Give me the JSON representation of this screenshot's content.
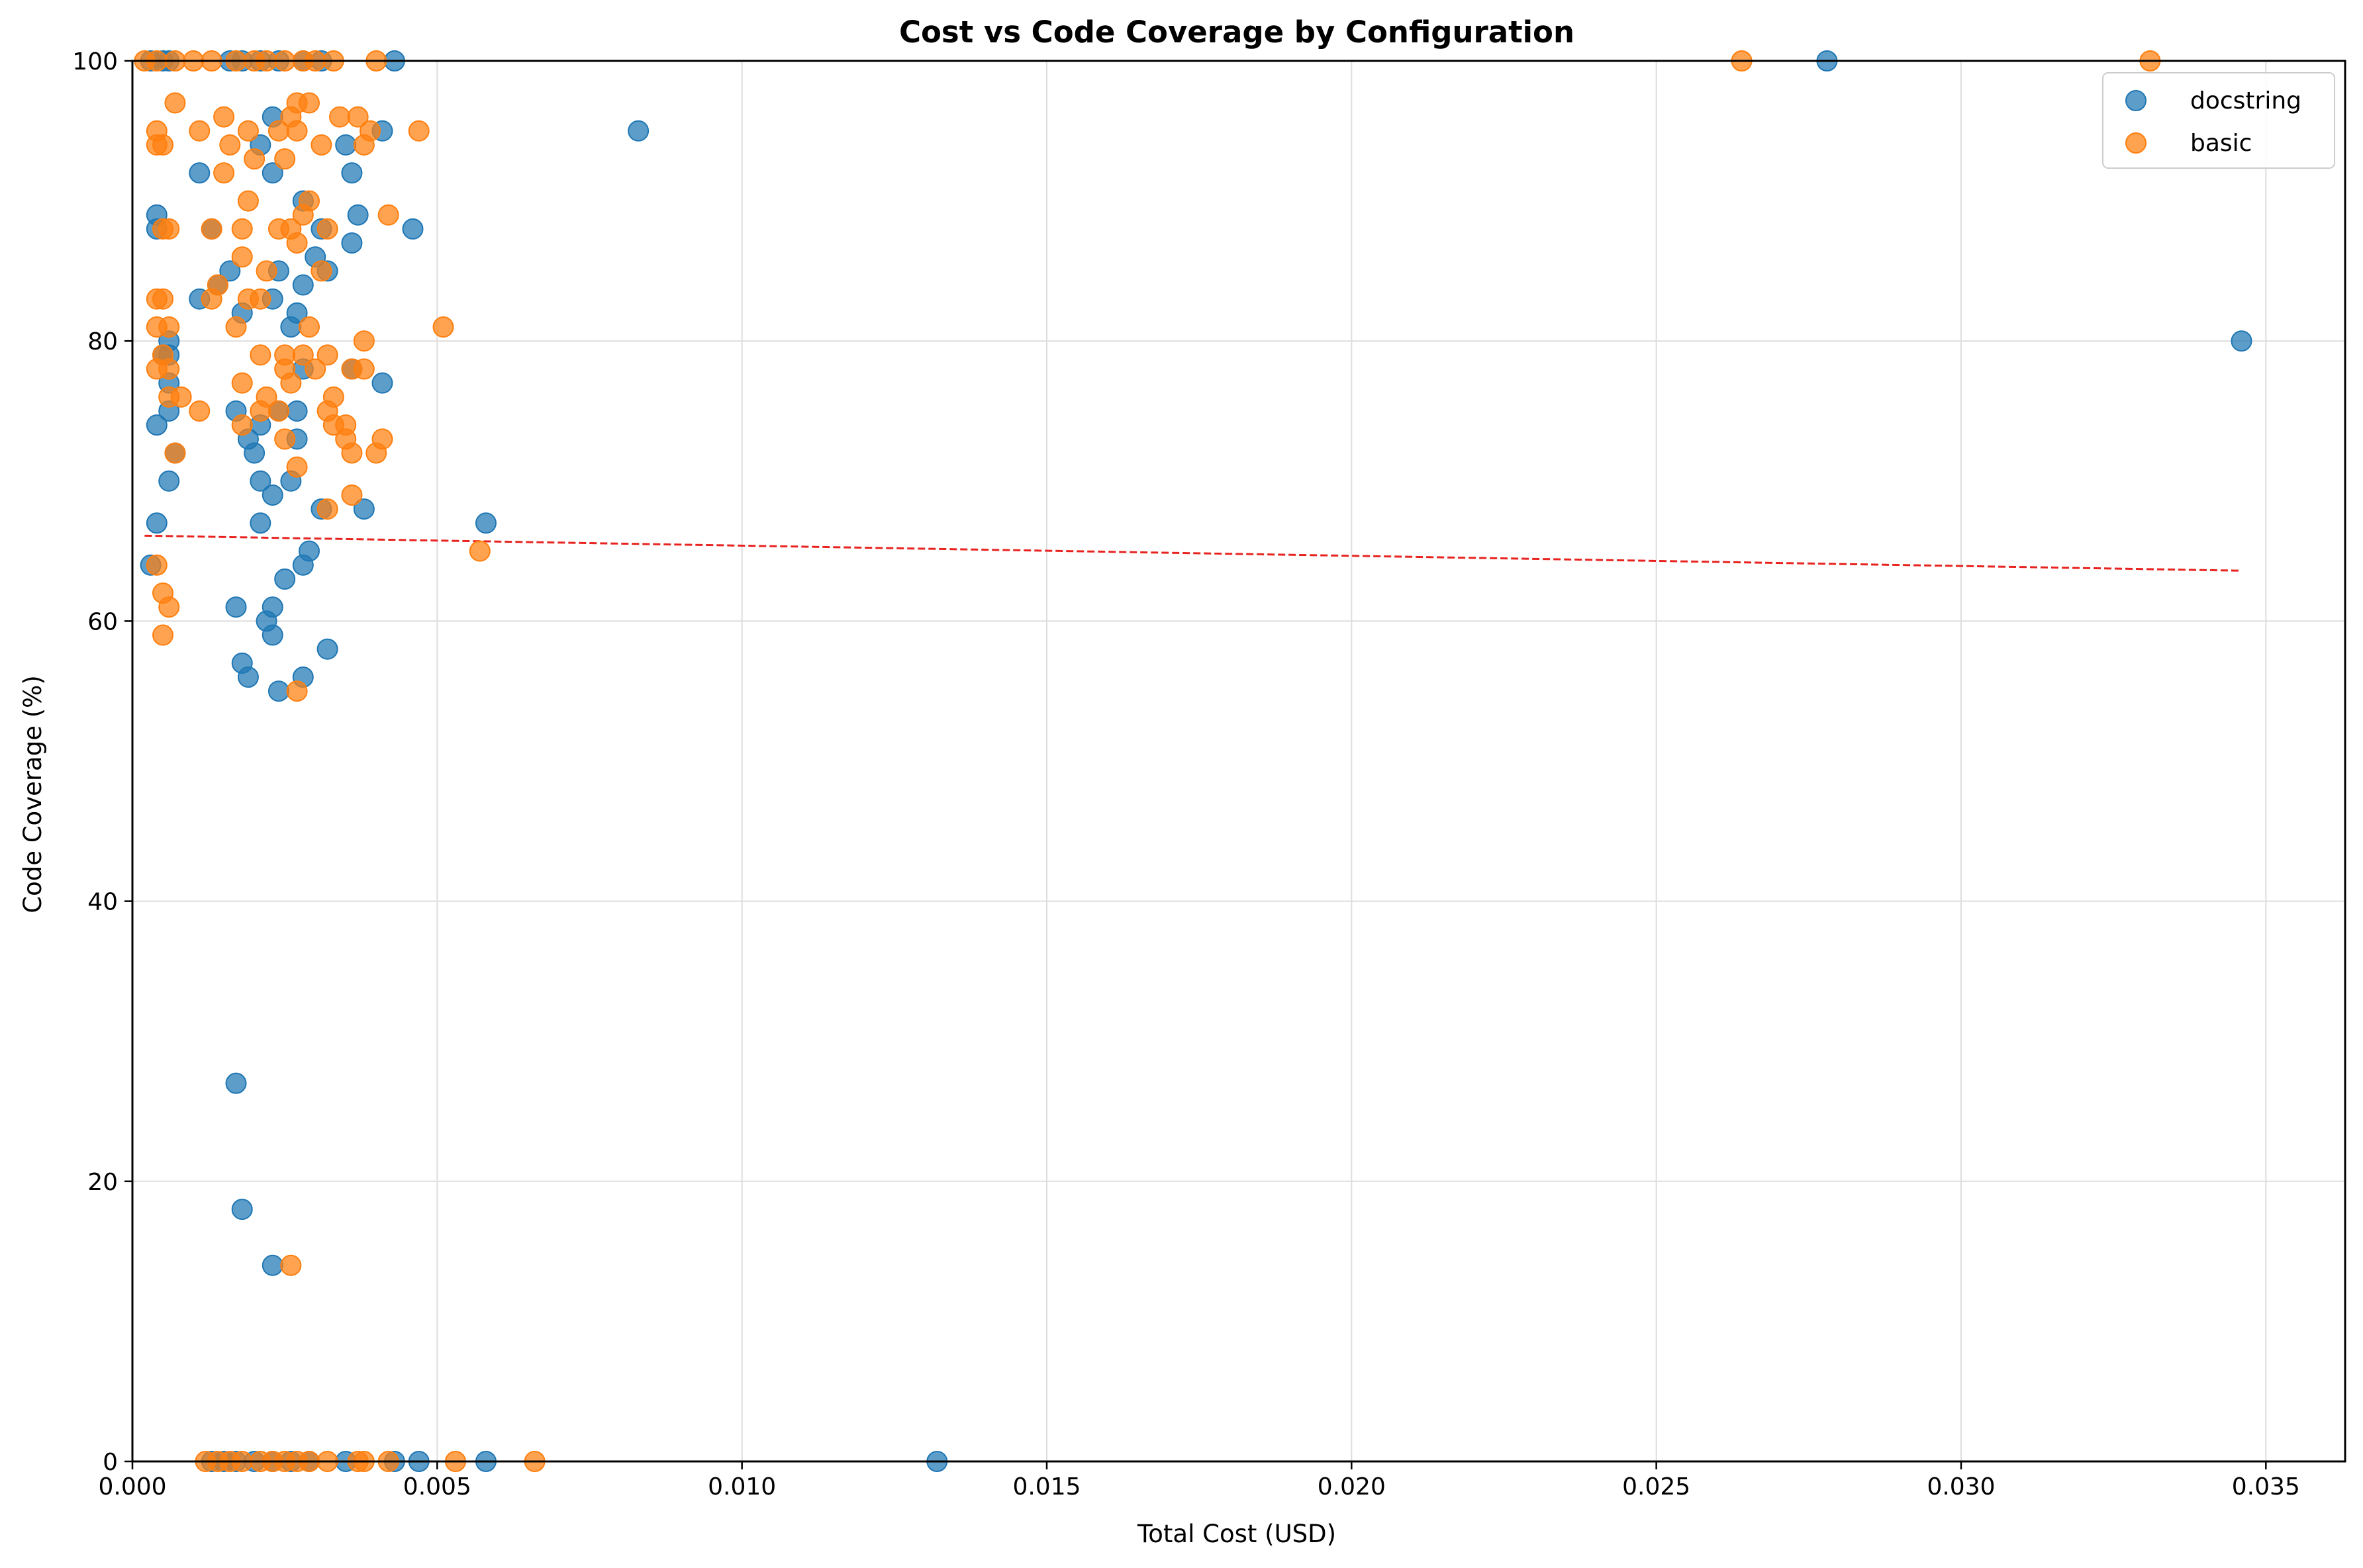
{
  "chart_data": {
    "type": "scatter",
    "title": "Cost vs Code Coverage by Configuration",
    "xlabel": "Total Cost (USD)",
    "ylabel": "Code Coverage (%)",
    "xlim": [
      0,
      0.0363
    ],
    "ylim": [
      0,
      100
    ],
    "xticks": [
      0,
      0.005,
      0.01,
      0.015,
      0.02,
      0.025,
      0.03,
      0.035
    ],
    "xtick_labels": [
      "0.000",
      "0.005",
      "0.010",
      "0.015",
      "0.020",
      "0.025",
      "0.030",
      "0.035"
    ],
    "yticks": [
      0,
      20,
      40,
      60,
      80,
      100
    ],
    "ytick_labels": [
      "0",
      "20",
      "40",
      "60",
      "80",
      "100"
    ],
    "grid": true,
    "legend_position": "top-right",
    "series": [
      {
        "name": "docstring",
        "color": "#1f77b4",
        "points": [
          [
            0.0003,
            100
          ],
          [
            0.0005,
            100
          ],
          [
            0.0006,
            100
          ],
          [
            0.0016,
            100
          ],
          [
            0.0018,
            100
          ],
          [
            0.0021,
            100
          ],
          [
            0.0024,
            100
          ],
          [
            0.0028,
            100
          ],
          [
            0.0031,
            100
          ],
          [
            0.0043,
            100
          ],
          [
            0.0278,
            100
          ],
          [
            0.0083,
            95
          ],
          [
            0.0041,
            95
          ],
          [
            0.0023,
            96
          ],
          [
            0.0021,
            94
          ],
          [
            0.0035,
            94
          ],
          [
            0.0011,
            92
          ],
          [
            0.0023,
            92
          ],
          [
            0.0036,
            92
          ],
          [
            0.0028,
            90
          ],
          [
            0.0037,
            89
          ],
          [
            0.0004,
            89
          ],
          [
            0.0004,
            88
          ],
          [
            0.0013,
            88
          ],
          [
            0.0031,
            88
          ],
          [
            0.0046,
            88
          ],
          [
            0.0036,
            87
          ],
          [
            0.003,
            86
          ],
          [
            0.0016,
            85
          ],
          [
            0.0024,
            85
          ],
          [
            0.0032,
            85
          ],
          [
            0.0014,
            84
          ],
          [
            0.0028,
            84
          ],
          [
            0.0011,
            83
          ],
          [
            0.0023,
            83
          ],
          [
            0.0018,
            82
          ],
          [
            0.0027,
            82
          ],
          [
            0.0026,
            81
          ],
          [
            0.0006,
            80
          ],
          [
            0.0346,
            80
          ],
          [
            0.0005,
            79
          ],
          [
            0.0006,
            79
          ],
          [
            0.0028,
            78
          ],
          [
            0.0036,
            78
          ],
          [
            0.0041,
            77
          ],
          [
            0.0006,
            77
          ],
          [
            0.0017,
            75
          ],
          [
            0.0024,
            75
          ],
          [
            0.0006,
            75
          ],
          [
            0.0027,
            75
          ],
          [
            0.0004,
            74
          ],
          [
            0.0021,
            74
          ],
          [
            0.0019,
            73
          ],
          [
            0.0027,
            73
          ],
          [
            0.002,
            72
          ],
          [
            0.0007,
            72
          ],
          [
            0.0006,
            70
          ],
          [
            0.0021,
            70
          ],
          [
            0.0026,
            70
          ],
          [
            0.0023,
            69
          ],
          [
            0.0031,
            68
          ],
          [
            0.0038,
            68
          ],
          [
            0.0004,
            67
          ],
          [
            0.0021,
            67
          ],
          [
            0.0058,
            67
          ],
          [
            0.0029,
            65
          ],
          [
            0.0003,
            64
          ],
          [
            0.0028,
            64
          ],
          [
            0.0025,
            63
          ],
          [
            0.0017,
            61
          ],
          [
            0.0023,
            61
          ],
          [
            0.0022,
            60
          ],
          [
            0.0023,
            59
          ],
          [
            0.0032,
            58
          ],
          [
            0.0018,
            57
          ],
          [
            0.0019,
            56
          ],
          [
            0.0028,
            56
          ],
          [
            0.0024,
            55
          ],
          [
            0.0017,
            27
          ],
          [
            0.0018,
            18
          ],
          [
            0.0023,
            14
          ],
          [
            0.0013,
            0
          ],
          [
            0.0015,
            0
          ],
          [
            0.0017,
            0
          ],
          [
            0.002,
            0
          ],
          [
            0.0023,
            0
          ],
          [
            0.0026,
            0
          ],
          [
            0.0029,
            0
          ],
          [
            0.0035,
            0
          ],
          [
            0.0043,
            0
          ],
          [
            0.0047,
            0
          ],
          [
            0.0058,
            0
          ],
          [
            0.0132,
            0
          ]
        ]
      },
      {
        "name": "basic",
        "color": "#ff7f0e",
        "points": [
          [
            0.0002,
            100
          ],
          [
            0.0004,
            100
          ],
          [
            0.0007,
            100
          ],
          [
            0.001,
            100
          ],
          [
            0.0013,
            100
          ],
          [
            0.0017,
            100
          ],
          [
            0.002,
            100
          ],
          [
            0.0022,
            100
          ],
          [
            0.0025,
            100
          ],
          [
            0.0028,
            100
          ],
          [
            0.003,
            100
          ],
          [
            0.0033,
            100
          ],
          [
            0.004,
            100
          ],
          [
            0.0264,
            100
          ],
          [
            0.0331,
            100
          ],
          [
            0.0007,
            97
          ],
          [
            0.0027,
            97
          ],
          [
            0.0029,
            97
          ],
          [
            0.0015,
            96
          ],
          [
            0.0026,
            96
          ],
          [
            0.0034,
            96
          ],
          [
            0.0037,
            96
          ],
          [
            0.0004,
            95
          ],
          [
            0.0011,
            95
          ],
          [
            0.0019,
            95
          ],
          [
            0.0024,
            95
          ],
          [
            0.0027,
            95
          ],
          [
            0.0039,
            95
          ],
          [
            0.0047,
            95
          ],
          [
            0.0004,
            94
          ],
          [
            0.0005,
            94
          ],
          [
            0.0016,
            94
          ],
          [
            0.0031,
            94
          ],
          [
            0.0038,
            94
          ],
          [
            0.002,
            93
          ],
          [
            0.0025,
            93
          ],
          [
            0.0015,
            92
          ],
          [
            0.0019,
            90
          ],
          [
            0.0029,
            90
          ],
          [
            0.0028,
            89
          ],
          [
            0.0042,
            89
          ],
          [
            0.0005,
            88
          ],
          [
            0.0006,
            88
          ],
          [
            0.0013,
            88
          ],
          [
            0.0018,
            88
          ],
          [
            0.0024,
            88
          ],
          [
            0.0026,
            88
          ],
          [
            0.0032,
            88
          ],
          [
            0.0027,
            87
          ],
          [
            0.0018,
            86
          ],
          [
            0.0022,
            85
          ],
          [
            0.0031,
            85
          ],
          [
            0.0014,
            84
          ],
          [
            0.0004,
            83
          ],
          [
            0.0005,
            83
          ],
          [
            0.0013,
            83
          ],
          [
            0.0019,
            83
          ],
          [
            0.0021,
            83
          ],
          [
            0.0004,
            81
          ],
          [
            0.0006,
            81
          ],
          [
            0.0017,
            81
          ],
          [
            0.0029,
            81
          ],
          [
            0.0051,
            81
          ],
          [
            0.0038,
            80
          ],
          [
            0.0005,
            79
          ],
          [
            0.0021,
            79
          ],
          [
            0.0025,
            79
          ],
          [
            0.0028,
            79
          ],
          [
            0.0032,
            79
          ],
          [
            0.0004,
            78
          ],
          [
            0.0006,
            78
          ],
          [
            0.0025,
            78
          ],
          [
            0.003,
            78
          ],
          [
            0.0036,
            78
          ],
          [
            0.0038,
            78
          ],
          [
            0.0018,
            77
          ],
          [
            0.0026,
            77
          ],
          [
            0.0006,
            76
          ],
          [
            0.0008,
            76
          ],
          [
            0.0022,
            76
          ],
          [
            0.0033,
            76
          ],
          [
            0.0011,
            75
          ],
          [
            0.0021,
            75
          ],
          [
            0.0024,
            75
          ],
          [
            0.0032,
            75
          ],
          [
            0.0018,
            74
          ],
          [
            0.0033,
            74
          ],
          [
            0.0035,
            74
          ],
          [
            0.0025,
            73
          ],
          [
            0.0035,
            73
          ],
          [
            0.0041,
            73
          ],
          [
            0.0007,
            72
          ],
          [
            0.0036,
            72
          ],
          [
            0.004,
            72
          ],
          [
            0.0027,
            71
          ],
          [
            0.0036,
            69
          ],
          [
            0.0032,
            68
          ],
          [
            0.0057,
            65
          ],
          [
            0.0004,
            64
          ],
          [
            0.0005,
            62
          ],
          [
            0.0006,
            61
          ],
          [
            0.0005,
            59
          ],
          [
            0.0027,
            55
          ],
          [
            0.0026,
            14
          ],
          [
            0.0012,
            0
          ],
          [
            0.0014,
            0
          ],
          [
            0.0016,
            0
          ],
          [
            0.0018,
            0
          ],
          [
            0.0021,
            0
          ],
          [
            0.0023,
            0
          ],
          [
            0.0025,
            0
          ],
          [
            0.0027,
            0
          ],
          [
            0.0029,
            0
          ],
          [
            0.0032,
            0
          ],
          [
            0.0037,
            0
          ],
          [
            0.0038,
            0
          ],
          [
            0.0042,
            0
          ],
          [
            0.0053,
            0
          ],
          [
            0.0066,
            0
          ]
        ]
      }
    ],
    "trendline": {
      "color": "#e8231f",
      "style": "dashed",
      "points": [
        [
          0.0002,
          66.1
        ],
        [
          0.0346,
          63.6
        ]
      ]
    }
  }
}
